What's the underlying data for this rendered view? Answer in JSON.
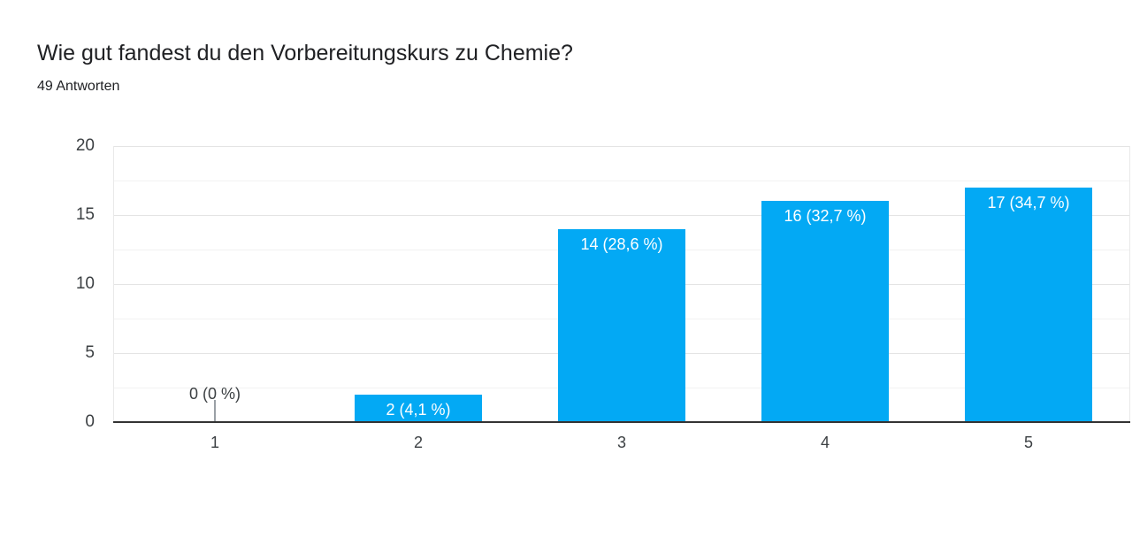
{
  "header": {
    "title": "Wie gut fandest du den Vorbereitungskurs zu Chemie?",
    "subtitle": "49 Antworten"
  },
  "chart_data": {
    "type": "bar",
    "title": "Wie gut fandest du den Vorbereitungskurs zu Chemie?",
    "subtitle": "49 Antworten",
    "categories": [
      "1",
      "2",
      "3",
      "4",
      "5"
    ],
    "values": [
      0,
      2,
      14,
      16,
      17
    ],
    "bar_labels": [
      "0 (0 %)",
      "2 (4,1 %)",
      "14 (28,6 %)",
      "16 (32,7 %)",
      "17 (34,7 %)"
    ],
    "xlabel": "",
    "ylabel": "",
    "ylim": [
      0,
      20
    ],
    "yticks": [
      0,
      5,
      10,
      15,
      20
    ],
    "minor_yticks": [
      2.5,
      7.5,
      12.5,
      17.5
    ],
    "grid": true,
    "legend": false,
    "colors": {
      "bar": "#03a9f4",
      "bar_label_inside": "#ffffff",
      "bar_label_outside": "#3c4043",
      "axis_label": "#3c4043",
      "baseline": "#333333",
      "gridline_major": "#e4e4e4",
      "gridline_minor": "#f2f2f2",
      "zero_tick": "#9aa0a6"
    }
  }
}
